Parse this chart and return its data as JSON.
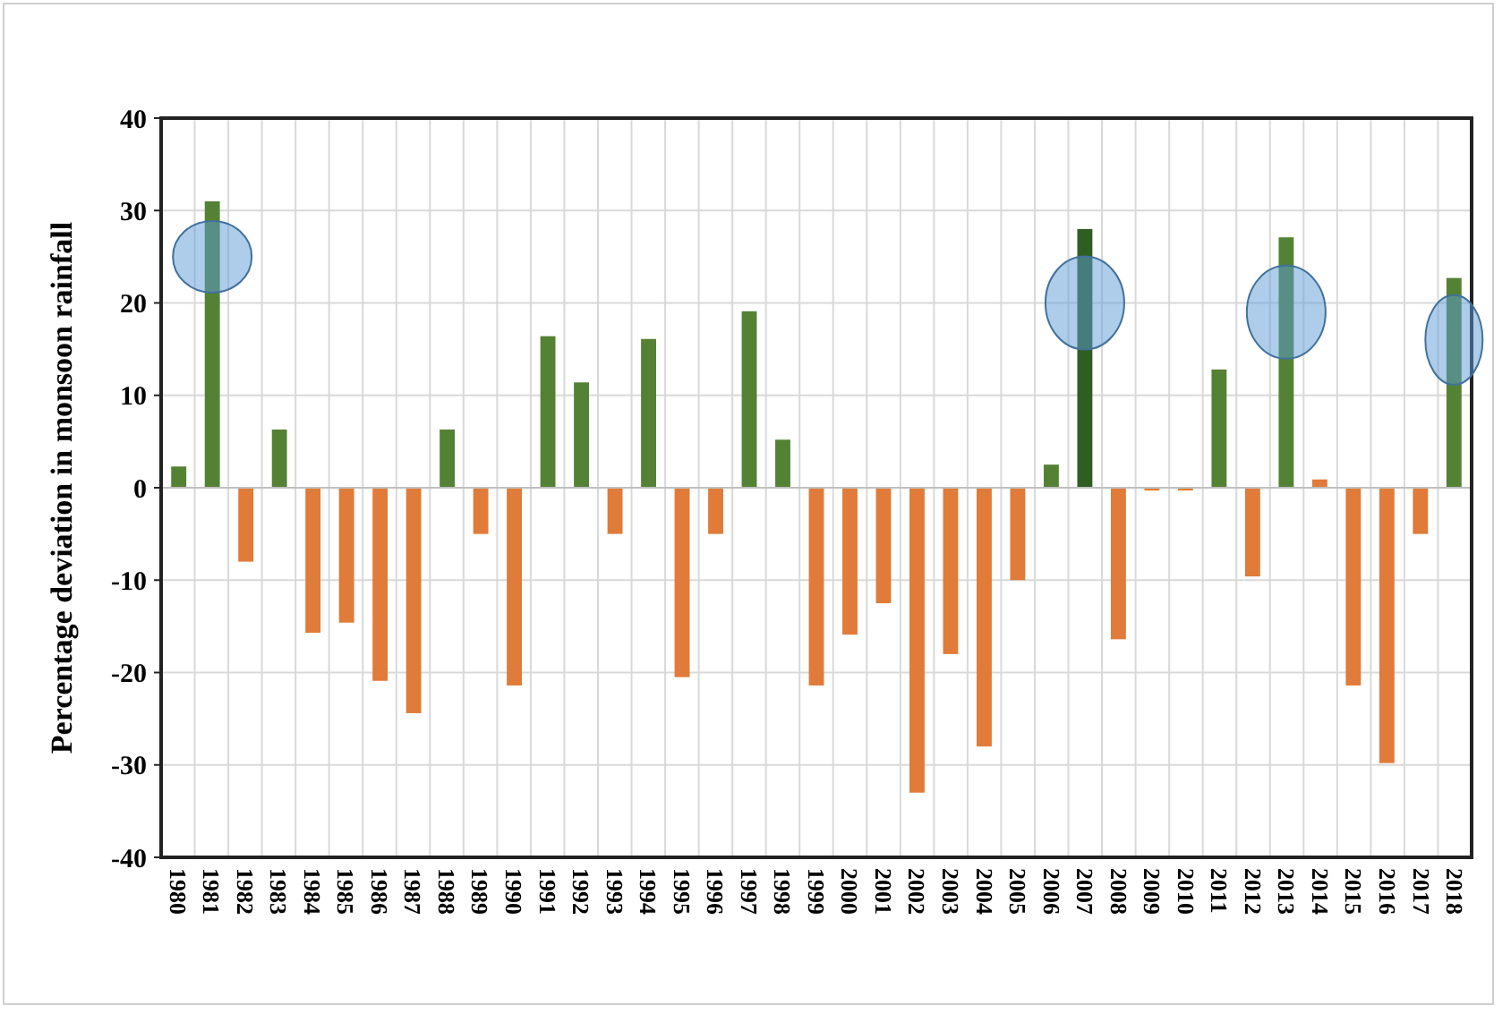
{
  "chart_data": {
    "type": "bar",
    "ylabel": "Percentage deviation in monsoon rainfall",
    "categories": [
      "1980",
      "1981",
      "1982",
      "1983",
      "1984",
      "1985",
      "1986",
      "1987",
      "1988",
      "1989",
      "1990",
      "1991",
      "1992",
      "1993",
      "1994",
      "1995",
      "1996",
      "1997",
      "1998",
      "1999",
      "2000",
      "2001",
      "2002",
      "2003",
      "2004",
      "2005",
      "2006",
      "2007",
      "2008",
      "2009",
      "2010",
      "2011",
      "2012",
      "2013",
      "2014",
      "2015",
      "2016",
      "2017",
      "2018"
    ],
    "values": [
      2.3,
      31,
      -8,
      6.3,
      -15.7,
      -14.6,
      -20.9,
      -24.4,
      6.3,
      -5,
      -21.4,
      16.4,
      11.4,
      -5,
      16.1,
      -20.5,
      -5,
      19.1,
      5.2,
      -21.4,
      -15.9,
      -12.5,
      -33,
      -18,
      -28,
      -10,
      2.5,
      28,
      -16.4,
      -0.3,
      -0.3,
      12.8,
      -9.6,
      27.1,
      0.9,
      -21.4,
      -29.8,
      -5,
      22.7
    ],
    "colors": [
      "#548235",
      "#548235",
      "#e07b39",
      "#548235",
      "#e07b39",
      "#e07b39",
      "#e07b39",
      "#e07b39",
      "#548235",
      "#e07b39",
      "#e07b39",
      "#548235",
      "#548235",
      "#e07b39",
      "#548235",
      "#e07b39",
      "#e07b39",
      "#548235",
      "#548235",
      "#e07b39",
      "#e07b39",
      "#e07b39",
      "#e07b39",
      "#e07b39",
      "#e07b39",
      "#e07b39",
      "#548235",
      "#2f5e22",
      "#e07b39",
      "#e07b39",
      "#e07b39",
      "#548235",
      "#e07b39",
      "#548235",
      "#e07b39",
      "#e07b39",
      "#e07b39",
      "#e07b39",
      "#548235"
    ],
    "ylim": [
      -40,
      40
    ],
    "yticks": [
      -40,
      -30,
      -20,
      -10,
      0,
      10,
      20,
      30,
      40
    ],
    "grid": true
  }
}
